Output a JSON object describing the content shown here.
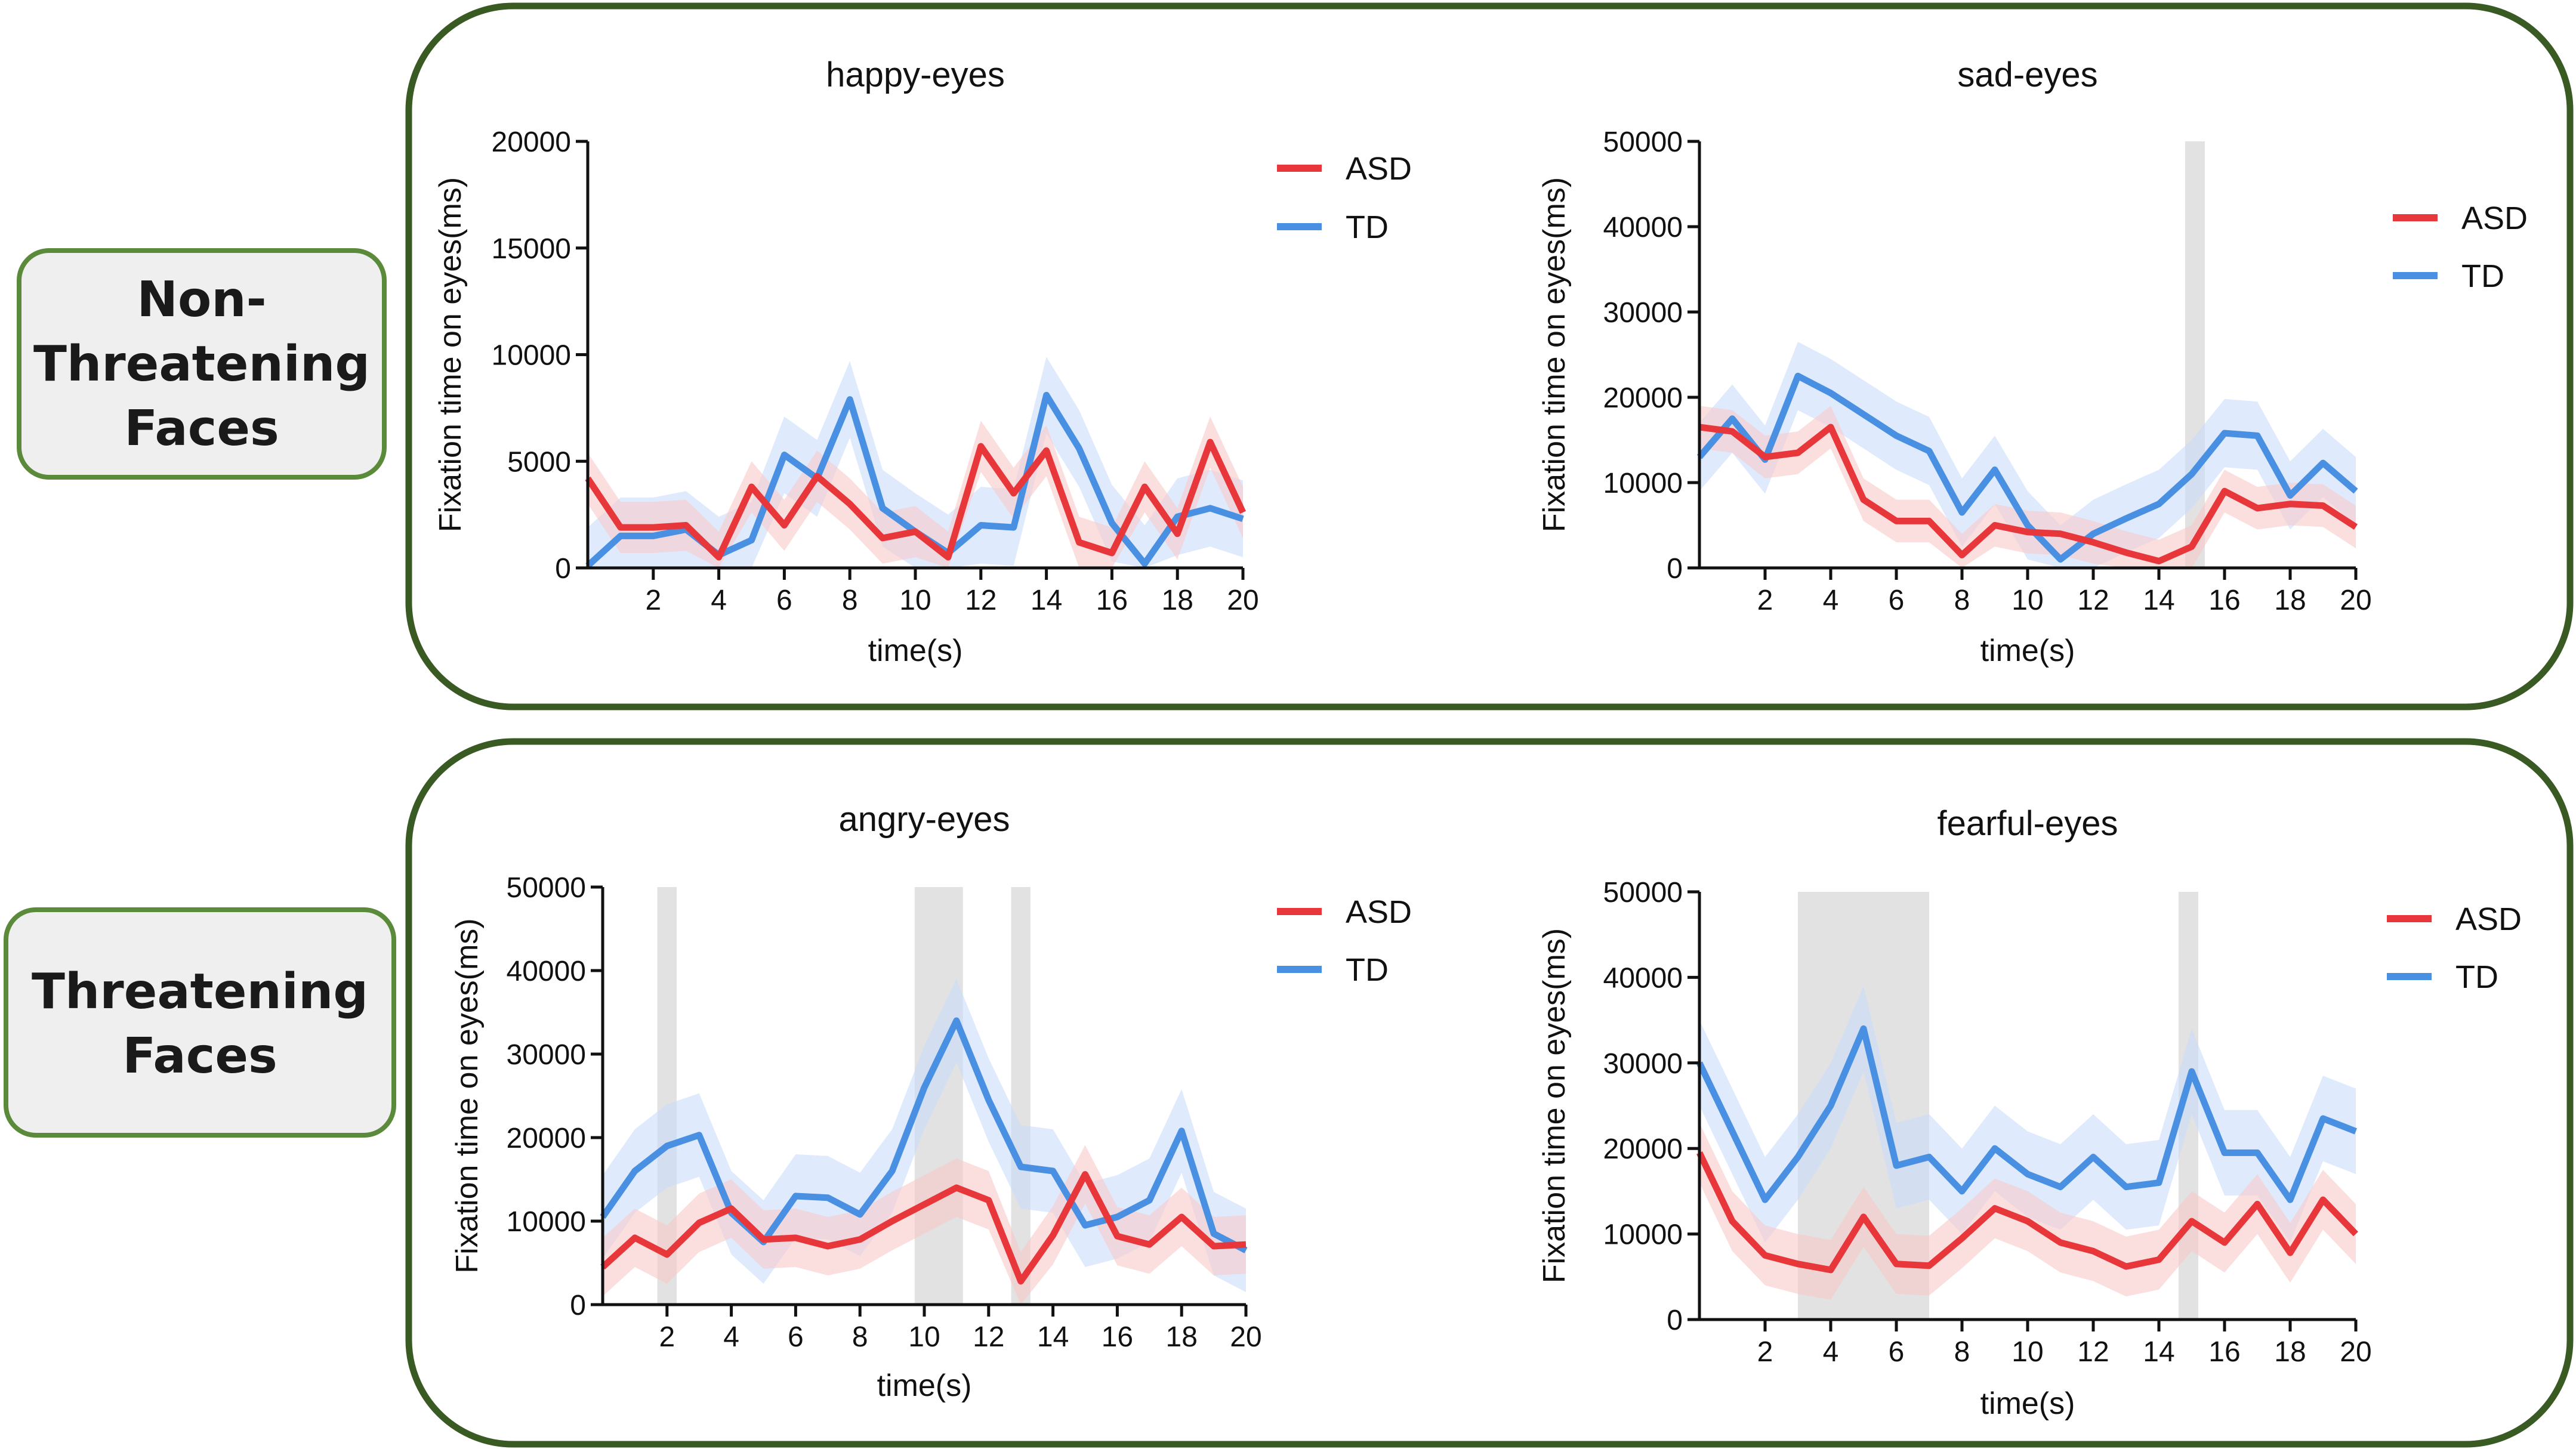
{
  "groups": {
    "non_threatening": "Non-\nThreatening\nFaces",
    "threatening": "Threatening\nFaces"
  },
  "colors": {
    "asd": "#e8373a",
    "td": "#4a90e2",
    "asd_band": "#f8c9ca",
    "td_band": "#c9defa",
    "frame": "#3a5a24",
    "label_border": "#5b8a3a",
    "shade": "#d6d6d6"
  },
  "chart_data": [
    {
      "id": "happy",
      "type": "line",
      "title": "happy-eyes",
      "xlabel": "time(s)",
      "ylabel": "Fixation time on eyes(ms)",
      "xlim": [
        0,
        20
      ],
      "ylim": [
        0,
        20000
      ],
      "xticks": [
        2,
        4,
        6,
        8,
        10,
        12,
        14,
        16,
        18,
        20
      ],
      "yticks": [
        0,
        5000,
        10000,
        15000,
        20000
      ],
      "legend": [
        "ASD",
        "TD"
      ],
      "legend_position": "top-right",
      "significance_windows": [],
      "x": [
        0,
        1,
        2,
        3,
        4,
        5,
        6,
        7,
        8,
        9,
        10,
        11,
        12,
        13,
        14,
        15,
        16,
        17,
        18,
        19,
        20
      ],
      "series": [
        {
          "name": "ASD",
          "values": [
            4200,
            1900,
            1900,
            2000,
            500,
            3800,
            2000,
            4300,
            3000,
            1400,
            1700,
            500,
            5700,
            3500,
            5500,
            1200,
            700,
            3800,
            1600,
            5900,
            2600
          ],
          "error": 1200
        },
        {
          "name": "TD",
          "values": [
            100,
            1500,
            1500,
            1800,
            600,
            1300,
            5300,
            4200,
            7900,
            2800,
            1700,
            700,
            2000,
            1900,
            8100,
            5600,
            2100,
            200,
            2400,
            2800,
            2300
          ],
          "error": 1800
        }
      ]
    },
    {
      "id": "sad",
      "type": "line",
      "title": "sad-eyes",
      "xlabel": "time(s)",
      "ylabel": "Fixation time on eyes(ms)",
      "xlim": [
        0,
        20
      ],
      "ylim": [
        0,
        50000
      ],
      "xticks": [
        2,
        4,
        6,
        8,
        10,
        12,
        14,
        16,
        18,
        20
      ],
      "yticks": [
        0,
        10000,
        20000,
        30000,
        40000,
        50000
      ],
      "legend": [
        "ASD",
        "TD"
      ],
      "legend_position": "top-right",
      "significance_windows": [
        [
          14.8,
          15.4
        ]
      ],
      "x": [
        0,
        1,
        2,
        3,
        4,
        5,
        6,
        7,
        8,
        9,
        10,
        11,
        12,
        13,
        14,
        15,
        16,
        17,
        18,
        19,
        20
      ],
      "series": [
        {
          "name": "ASD",
          "values": [
            16500,
            16000,
            13000,
            13500,
            16500,
            8000,
            5500,
            5500,
            1500,
            5000,
            4200,
            4000,
            3000,
            1800,
            800,
            2500,
            9000,
            7000,
            7500,
            7300,
            4800
          ],
          "error": 2500
        },
        {
          "name": "TD",
          "values": [
            13000,
            17500,
            12700,
            22500,
            20500,
            18000,
            15500,
            13700,
            6500,
            11500,
            5000,
            1000,
            4000,
            5800,
            7500,
            11000,
            15800,
            15500,
            8500,
            12300,
            9000
          ],
          "error": 4000
        }
      ]
    },
    {
      "id": "angry",
      "type": "line",
      "title": "angry-eyes",
      "xlabel": "time(s)",
      "ylabel": "Fixation time on eyes(ms)",
      "xlim": [
        0,
        20
      ],
      "ylim": [
        0,
        50000
      ],
      "xticks": [
        2,
        4,
        6,
        8,
        10,
        12,
        14,
        16,
        18,
        20
      ],
      "yticks": [
        0,
        10000,
        20000,
        30000,
        40000,
        50000
      ],
      "legend": [
        "ASD",
        "TD"
      ],
      "legend_position": "top-right",
      "significance_windows": [
        [
          1.7,
          2.3
        ],
        [
          9.7,
          11.2
        ],
        [
          12.7,
          13.3
        ]
      ],
      "x": [
        0,
        1,
        2,
        3,
        4,
        5,
        6,
        7,
        8,
        9,
        10,
        11,
        12,
        13,
        14,
        15,
        16,
        17,
        18,
        19,
        20
      ],
      "series": [
        {
          "name": "ASD",
          "values": [
            4500,
            8000,
            6000,
            9800,
            11500,
            7800,
            8000,
            7000,
            7800,
            10000,
            12000,
            14000,
            12500,
            2800,
            8300,
            15600,
            8200,
            7200,
            10500,
            7000,
            7200
          ],
          "error": 3500
        },
        {
          "name": "TD",
          "values": [
            10500,
            16000,
            19000,
            20300,
            11000,
            7500,
            13000,
            12800,
            10800,
            16000,
            26000,
            34000,
            24500,
            16500,
            16000,
            9500,
            10500,
            12500,
            20800,
            8500,
            6500
          ],
          "error": 5000
        }
      ]
    },
    {
      "id": "fearful",
      "type": "line",
      "title": "fearful-eyes",
      "xlabel": "time(s)",
      "ylabel": "Fixation time on eyes(ms)",
      "xlim": [
        0,
        20
      ],
      "ylim": [
        0,
        50000
      ],
      "xticks": [
        2,
        4,
        6,
        8,
        10,
        12,
        14,
        16,
        18,
        20
      ],
      "yticks": [
        0,
        10000,
        20000,
        30000,
        40000,
        50000
      ],
      "legend": [
        "ASD",
        "TD"
      ],
      "legend_position": "top-right",
      "significance_windows": [
        [
          3,
          7
        ],
        [
          14.6,
          15.2
        ]
      ],
      "x": [
        0,
        1,
        2,
        3,
        4,
        5,
        6,
        7,
        8,
        9,
        10,
        11,
        12,
        13,
        14,
        15,
        16,
        17,
        18,
        19,
        20
      ],
      "series": [
        {
          "name": "ASD",
          "values": [
            19500,
            11500,
            7500,
            6500,
            5800,
            12000,
            6500,
            6300,
            9500,
            13000,
            11500,
            9000,
            8000,
            6200,
            7000,
            11500,
            9000,
            13500,
            7800,
            14000,
            10000
          ],
          "error": 3500
        },
        {
          "name": "TD",
          "values": [
            30000,
            22000,
            14000,
            19000,
            25000,
            34000,
            18000,
            19000,
            15000,
            20000,
            17000,
            15500,
            19000,
            15500,
            16000,
            29000,
            19500,
            19500,
            14000,
            23500,
            22000
          ],
          "error": 5000
        }
      ]
    }
  ]
}
